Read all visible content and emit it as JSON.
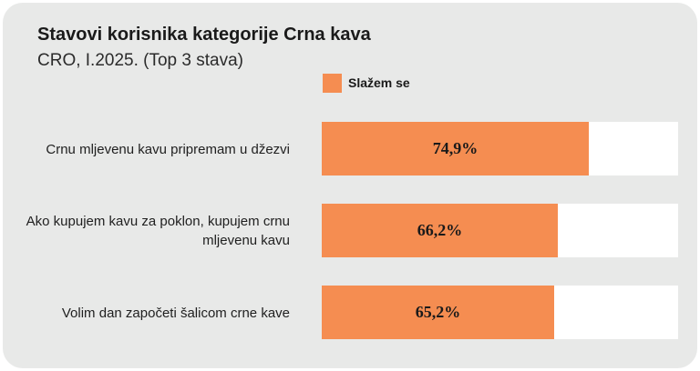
{
  "chart_data": {
    "type": "bar",
    "orientation": "horizontal",
    "title": "Stavovi korisnika kategorije Crna kava",
    "subtitle": "CRO, I.2025. (Top 3 stava)",
    "categories": [
      "Crnu mljevenu kavu pripremam u džezvi",
      "Ako kupujem kavu za poklon, kupujem crnu mljevenu kavu",
      "Volim dan započeti šalicom crne kave"
    ],
    "series": [
      {
        "name": "Slažem se",
        "values": [
          74.9,
          66.2,
          65.2
        ],
        "labels": [
          "74,9%",
          "66,2%",
          "65,2%"
        ],
        "color": "#f58d51"
      }
    ],
    "xlim": [
      0,
      100
    ],
    "track_color": "#ffffff",
    "legend_position": "top",
    "grid": false
  },
  "colors": {
    "background": "#e8e9e8",
    "bar": "#f58d51",
    "track": "#ffffff"
  }
}
